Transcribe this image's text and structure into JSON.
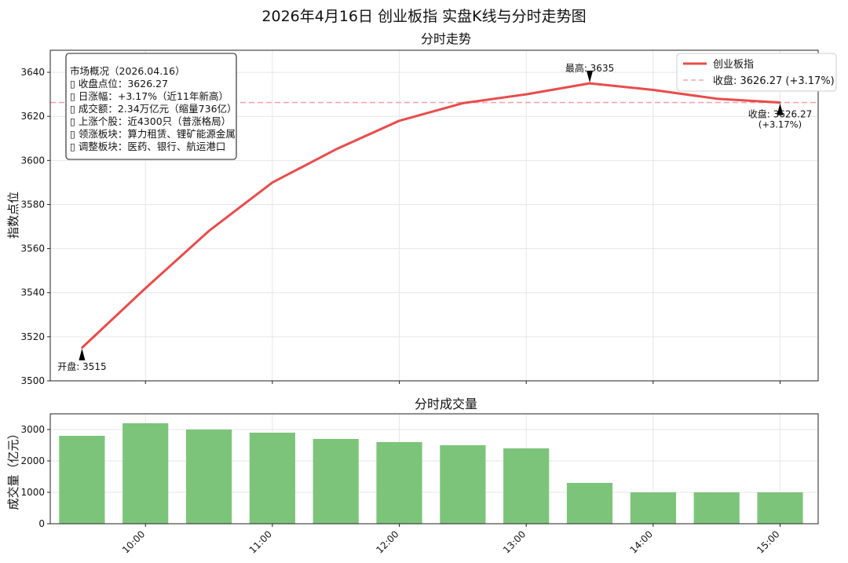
{
  "figure": {
    "title": "2026年4月16日 创业板指 实盘K线与分时走势图"
  },
  "colors": {
    "line": "#e84c4c",
    "close_ref": "#f4a6ae",
    "bar": "#7dc47b",
    "annotation_arrow": "#000000"
  },
  "info_box": {
    "lines": [
      "市场概况（2026.04.16）",
      "▯ 收盘点位：3626.27",
      "▯ 日涨幅：+3.17%（近11年新高）",
      "▯ 成交额：2.34万亿元（缩量736亿）",
      "▯ 上涨个股：近4300只（普涨格局）",
      "▯ 领涨板块：算力租赁、锂矿能源金属",
      "▯ 调整板块：医药、银行、航运港口"
    ]
  },
  "annotations": {
    "open": "开盘: 3515",
    "high": "最高: 3635",
    "close_line1": "收盘: 3626.27",
    "close_line2": "(+3.17%)"
  },
  "chart_data": [
    {
      "type": "line",
      "title": "分时走势",
      "xlabel": "",
      "ylabel": "指数点位",
      "ylim": [
        3500,
        3650
      ],
      "yticks": [
        3500,
        3520,
        3540,
        3560,
        3580,
        3600,
        3620,
        3640
      ],
      "xlim": [
        9.25,
        15.3
      ],
      "xticks": [
        10,
        11,
        12,
        13,
        14,
        15
      ],
      "grid": true,
      "legend_position": "top-right",
      "series": [
        {
          "name": "创业板指",
          "x": [
            9.5,
            10.0,
            10.5,
            11.0,
            11.5,
            12.0,
            12.5,
            13.0,
            13.5,
            14.0,
            14.5,
            15.0
          ],
          "values": [
            3515,
            3542,
            3568,
            3590,
            3605,
            3618,
            3626,
            3630,
            3635,
            3632,
            3628,
            3626.27
          ]
        },
        {
          "name": "收盘: 3626.27 (+3.17%)",
          "style": "dashed-horizontal",
          "value": 3626.27
        }
      ]
    },
    {
      "type": "bar",
      "title": "分时成交量",
      "xlabel": "",
      "ylabel": "成交量（亿元）",
      "ylim": [
        0,
        3500
      ],
      "yticks": [
        0,
        1000,
        2000,
        3000
      ],
      "xlim": [
        9.25,
        15.3
      ],
      "xticks": [
        "10:00",
        "11:00",
        "12:00",
        "13:00",
        "14:00",
        "15:00"
      ],
      "grid": true,
      "x": [
        9.5,
        10.0,
        10.5,
        11.0,
        11.5,
        12.0,
        12.5,
        13.0,
        13.5,
        14.0,
        14.5,
        15.0
      ],
      "values": [
        2800,
        3200,
        3000,
        2900,
        2700,
        2600,
        2500,
        2400,
        1300,
        1000,
        1000,
        1000
      ]
    }
  ]
}
